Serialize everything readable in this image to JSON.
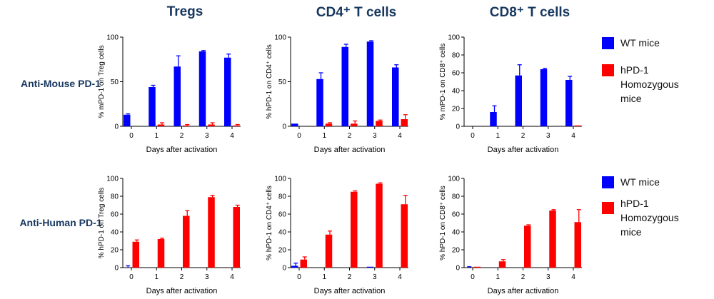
{
  "column_titles": [
    "Tregs",
    "CD4⁺ T cells",
    "CD8⁺ T cells"
  ],
  "row_labels": [
    "Anti-Mouse PD-1",
    "Anti-Human PD-1"
  ],
  "legends": [
    {
      "items": [
        {
          "label": "WT mice",
          "color": "#0000ff"
        },
        {
          "label": "hPD-1\nHomozygous mice",
          "color": "#ff0000"
        }
      ]
    },
    {
      "items": [
        {
          "label": "WT mice",
          "color": "#0000ff"
        },
        {
          "label": "hPD-1\nHomozygous\nmice",
          "color": "#ff0000"
        }
      ]
    }
  ],
  "chart_data": [
    {
      "type": "bar",
      "categories": [
        "0",
        "1",
        "2",
        "3",
        "4"
      ],
      "xlabel": "Days after activation",
      "ylabel": "% mPD-1  on Treg cells",
      "ylim": [
        0,
        100
      ],
      "yticks": [
        0,
        50,
        100
      ],
      "series": [
        {
          "name": "WT mice",
          "color": "#0000ff",
          "values": [
            13,
            44,
            67,
            84,
            77
          ],
          "errors": [
            1,
            2,
            12,
            1,
            4
          ]
        },
        {
          "name": "hPD-1 Homozygous mice",
          "color": "#ff0000",
          "values": [
            0,
            2,
            1,
            2,
            1
          ],
          "errors": [
            0,
            2,
            1,
            2,
            1
          ]
        }
      ]
    },
    {
      "type": "bar",
      "categories": [
        "0",
        "1",
        "2",
        "3",
        "4"
      ],
      "xlabel": "Days after activation",
      "ylabel": "% hPD-1  on CD4⁺ cells",
      "ylim": [
        0,
        100
      ],
      "yticks": [
        0,
        50,
        100
      ],
      "series": [
        {
          "name": "WT mice",
          "color": "#0000ff",
          "values": [
            3,
            53,
            89,
            95,
            66
          ],
          "errors": [
            0,
            7,
            3,
            1,
            3
          ]
        },
        {
          "name": "hPD-1 Homozygous mice",
          "color": "#ff0000",
          "values": [
            0,
            3,
            3,
            6,
            8
          ],
          "errors": [
            0,
            1,
            3,
            1,
            5
          ]
        }
      ]
    },
    {
      "type": "bar",
      "categories": [
        "0",
        "1",
        "2",
        "3",
        "4"
      ],
      "xlabel": "Days after activation",
      "ylabel": "% mPD-1 on CD8⁺ cells",
      "ylim": [
        0,
        100
      ],
      "yticks": [
        0,
        20,
        40,
        60,
        80,
        100
      ],
      "series": [
        {
          "name": "WT mice",
          "color": "#0000ff",
          "values": [
            0,
            16,
            57,
            64,
            52
          ],
          "errors": [
            0,
            7,
            12,
            1,
            4
          ]
        },
        {
          "name": "hPD-1 Homozygous mice",
          "color": "#ff0000",
          "values": [
            0,
            0,
            0,
            0,
            1
          ],
          "errors": [
            0,
            0,
            0,
            0,
            0
          ]
        }
      ]
    },
    {
      "type": "bar",
      "categories": [
        "0",
        "1",
        "2",
        "3",
        "4"
      ],
      "xlabel": "Days after activation",
      "ylabel": "% hPD-1 on Treg cells",
      "ylim": [
        0,
        100
      ],
      "yticks": [
        0,
        20,
        40,
        60,
        80,
        100
      ],
      "series": [
        {
          "name": "WT mice",
          "color": "#0000ff",
          "values": [
            0,
            0,
            0,
            0,
            0
          ],
          "errors": [
            2,
            0,
            0,
            0,
            0
          ]
        },
        {
          "name": "hPD-1 Homozygous mice",
          "color": "#ff0000",
          "values": [
            29,
            32,
            58,
            79,
            68
          ],
          "errors": [
            2,
            1,
            6,
            2,
            2
          ]
        }
      ]
    },
    {
      "type": "bar",
      "categories": [
        "0",
        "1",
        "2",
        "3",
        "4"
      ],
      "xlabel": "Days after activation",
      "ylabel": "% hPD-1  on CD4⁺ cells",
      "ylim": [
        0,
        100
      ],
      "yticks": [
        0,
        20,
        40,
        60,
        80,
        100
      ],
      "series": [
        {
          "name": "WT mice",
          "color": "#0000ff",
          "values": [
            2,
            0,
            0,
            1,
            0
          ],
          "errors": [
            3,
            0,
            0,
            0,
            0
          ]
        },
        {
          "name": "hPD-1 Homozygous mice",
          "color": "#ff0000",
          "values": [
            9,
            37,
            85,
            94,
            71
          ],
          "errors": [
            3,
            4,
            1,
            1,
            10
          ]
        }
      ]
    },
    {
      "type": "bar",
      "categories": [
        "0",
        "1",
        "2",
        "3",
        "4"
      ],
      "xlabel": "Days after activation",
      "ylabel": "% hPD-1 on CD8⁺ cells",
      "ylim": [
        0,
        100
      ],
      "yticks": [
        0,
        20,
        40,
        60,
        80,
        100
      ],
      "series": [
        {
          "name": "WT mice",
          "color": "#0000ff",
          "values": [
            0,
            0,
            0,
            0,
            0
          ],
          "errors": [
            1,
            0,
            0,
            0,
            0
          ]
        },
        {
          "name": "hPD-1 Homozygous mice",
          "color": "#ff0000",
          "values": [
            1,
            7,
            47,
            64,
            51
          ],
          "errors": [
            0,
            2,
            1,
            1,
            14
          ]
        }
      ]
    }
  ]
}
